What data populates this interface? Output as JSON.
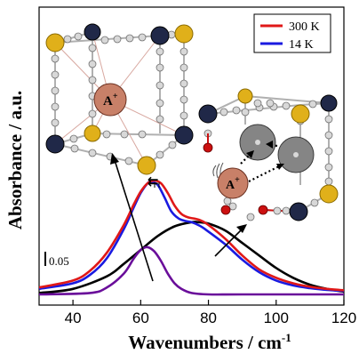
{
  "chart_data": {
    "type": "line",
    "title": "",
    "xlabel": "Wavenumbers / cm",
    "xlabel_superscript": "-1",
    "ylabel": "Absorbance / a.u.",
    "xlim": [
      30,
      120
    ],
    "ylim": [
      0,
      1.0
    ],
    "x_ticks": [
      40,
      60,
      80,
      100,
      120
    ],
    "x_tick_labels": [
      "40",
      "60",
      "80",
      "100",
      "120"
    ],
    "y_ticks_shown": false,
    "grid": false,
    "legend_position": "top-right",
    "scale_bar_label": "0.05",
    "inset_ion_label": "A",
    "inset_ion_charge": "+",
    "shift_marker": "⇇",
    "colors": {
      "red": "#e01818",
      "blue": "#1a1ae0",
      "black": "#000000",
      "purple": "#6a0e9a",
      "gold": "#e0b01a",
      "navy": "#202848",
      "cation": "#c88068",
      "halide_gray": "#858585",
      "oxygen_red": "#cc1010"
    },
    "series": [
      {
        "name": "300 K",
        "color": "#e01818",
        "x": [
          30,
          40,
          45,
          50,
          55,
          58,
          60,
          62,
          64,
          66,
          68,
          70,
          72,
          74,
          76,
          78,
          80,
          85,
          90,
          95,
          100,
          105,
          110,
          115,
          120
        ],
        "y": [
          0.05,
          0.1,
          0.17,
          0.3,
          0.5,
          0.65,
          0.74,
          0.8,
          0.82,
          0.8,
          0.73,
          0.64,
          0.58,
          0.555,
          0.545,
          0.53,
          0.5,
          0.4,
          0.28,
          0.18,
          0.12,
          0.08,
          0.055,
          0.04,
          0.03
        ]
      },
      {
        "name": "14 K",
        "color": "#1a1ae0",
        "x": [
          30,
          40,
          45,
          50,
          55,
          58,
          60,
          62,
          63,
          65,
          67,
          69,
          71,
          73,
          75,
          77,
          79,
          85,
          90,
          95,
          100,
          105,
          110,
          115,
          120
        ],
        "y": [
          0.04,
          0.08,
          0.14,
          0.26,
          0.47,
          0.63,
          0.73,
          0.8,
          0.81,
          0.79,
          0.7,
          0.6,
          0.55,
          0.53,
          0.52,
          0.5,
          0.47,
          0.36,
          0.25,
          0.16,
          0.1,
          0.065,
          0.045,
          0.032,
          0.025
        ]
      },
      {
        "name": "",
        "color": "#000000",
        "x": [
          30,
          40,
          50,
          55,
          60,
          65,
          70,
          75,
          77,
          80,
          85,
          90,
          95,
          100,
          105,
          110,
          115,
          120
        ],
        "y": [
          0.01,
          0.04,
          0.13,
          0.22,
          0.32,
          0.42,
          0.49,
          0.52,
          0.52,
          0.51,
          0.46,
          0.37,
          0.28,
          0.19,
          0.12,
          0.07,
          0.04,
          0.02
        ]
      },
      {
        "name": "",
        "color": "#6a0e9a",
        "x": [
          30,
          45,
          50,
          55,
          58,
          60,
          62,
          64,
          66,
          68,
          70,
          72,
          75,
          80,
          90,
          120
        ],
        "y": [
          0.0,
          0.01,
          0.05,
          0.15,
          0.26,
          0.32,
          0.34,
          0.31,
          0.24,
          0.15,
          0.08,
          0.04,
          0.01,
          0.0,
          0.0,
          0.0
        ]
      }
    ]
  }
}
